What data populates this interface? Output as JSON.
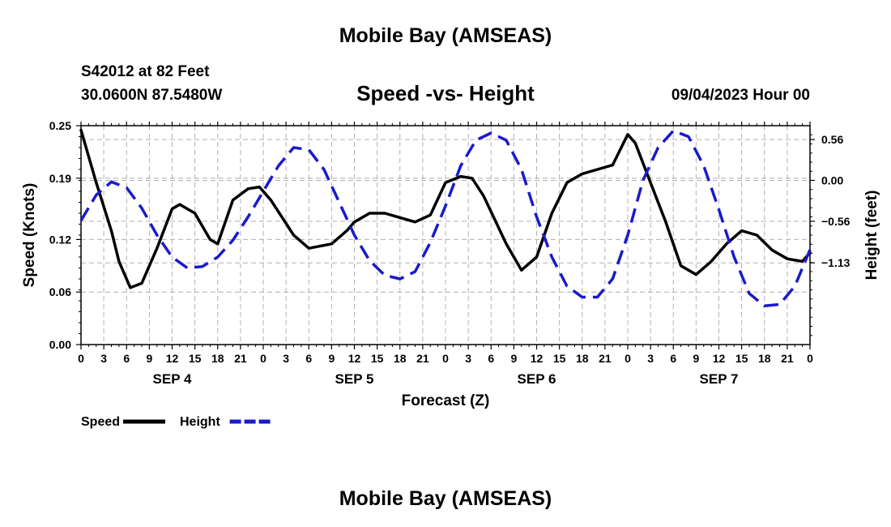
{
  "page": {
    "title": "Mobile Bay (AMSEAS)",
    "station": "S42012 at 82 Feet",
    "coordinates": "30.0600N  87.5480W",
    "chart_title": "Speed -vs- Height",
    "datetime": "09/04/2023 Hour 00",
    "bottom_title": "Mobile Bay (AMSEAS)"
  },
  "colors": {
    "speed": "#000000",
    "height": "#1a1acc",
    "grid": "#b0b0b0"
  },
  "chart_data": {
    "type": "line",
    "title": "Speed -vs- Height",
    "xlabel": "Forecast (Z)",
    "ylabel": "Speed (Knots)",
    "y2label": "Height (feet)",
    "xlim": [
      0,
      96
    ],
    "ylim": [
      0,
      0.25
    ],
    "y2lim": [
      -2.25,
      0.75
    ],
    "x_ticks": [
      0,
      3,
      6,
      9,
      12,
      15,
      18,
      21,
      24,
      27,
      30,
      33,
      36,
      39,
      42,
      45,
      48,
      51,
      54,
      57,
      60,
      63,
      66,
      69,
      72,
      75,
      78,
      81,
      84,
      87,
      90,
      93,
      96
    ],
    "x_tick_labels": [
      "0",
      "3",
      "6",
      "9",
      "12",
      "15",
      "18",
      "21",
      "0",
      "3",
      "6",
      "9",
      "12",
      "15",
      "18",
      "21",
      "0",
      "3",
      "6",
      "9",
      "12",
      "15",
      "18",
      "21",
      "0",
      "3",
      "6",
      "9",
      "12",
      "15",
      "18",
      "21",
      "0"
    ],
    "day_labels": [
      {
        "x": 12,
        "label": "SEP 4"
      },
      {
        "x": 36,
        "label": "SEP 5"
      },
      {
        "x": 60,
        "label": "SEP 6"
      },
      {
        "x": 84,
        "label": "SEP 7"
      }
    ],
    "y_ticks": [
      0,
      0.06,
      0.12,
      0.19,
      0.25
    ],
    "y_tick_labels": [
      "0.00",
      "0.06",
      "0.12",
      "0.19",
      "0.25"
    ],
    "y2_ticks": [
      0.56,
      0.0,
      -0.56,
      -1.13
    ],
    "y2_tick_labels": [
      "0.56",
      "0.00",
      "−0.56",
      "−1.13"
    ],
    "legend": [
      {
        "name": "Speed",
        "style": "solid",
        "color_key": "speed"
      },
      {
        "name": "Height",
        "style": "dashed",
        "color_key": "height"
      }
    ],
    "legend_position": "bottom-left",
    "series": [
      {
        "name": "Speed",
        "axis": "left",
        "style": "solid",
        "x": [
          0,
          2,
          4,
          5,
          6.5,
          8,
          10,
          12,
          13,
          15,
          17,
          18,
          20,
          22,
          23.5,
          25,
          28,
          30,
          33,
          35,
          36,
          38,
          40,
          42,
          44,
          46,
          48,
          50,
          51.5,
          53,
          56,
          58,
          60,
          62,
          64,
          66,
          68,
          70,
          72,
          73,
          75,
          77,
          79,
          81,
          83,
          85,
          87,
          89,
          91,
          93,
          95,
          96
        ],
        "values": [
          0.245,
          0.185,
          0.13,
          0.095,
          0.065,
          0.07,
          0.11,
          0.155,
          0.16,
          0.15,
          0.12,
          0.115,
          0.165,
          0.178,
          0.18,
          0.165,
          0.125,
          0.11,
          0.115,
          0.13,
          0.14,
          0.15,
          0.15,
          0.145,
          0.14,
          0.148,
          0.185,
          0.192,
          0.19,
          0.17,
          0.115,
          0.085,
          0.1,
          0.15,
          0.185,
          0.195,
          0.2,
          0.205,
          0.24,
          0.23,
          0.185,
          0.14,
          0.09,
          0.08,
          0.095,
          0.115,
          0.13,
          0.125,
          0.108,
          0.098,
          0.095,
          0.105
        ]
      },
      {
        "name": "Height",
        "axis": "right",
        "style": "dashed",
        "x": [
          0,
          2,
          4,
          6,
          8,
          10,
          12,
          14,
          16,
          18,
          20,
          22,
          24,
          26,
          28,
          30,
          32,
          34,
          36,
          38,
          40,
          42,
          44,
          46,
          48,
          50,
          52,
          54,
          56,
          58,
          60,
          62,
          64,
          66,
          68,
          70,
          72,
          74,
          76,
          78,
          80,
          82,
          84,
          86,
          88,
          90,
          92,
          94,
          96
        ],
        "values": [
          -0.55,
          -0.2,
          -0.02,
          -0.1,
          -0.38,
          -0.75,
          -1.05,
          -1.2,
          -1.18,
          -1.05,
          -0.82,
          -0.5,
          -0.15,
          0.2,
          0.45,
          0.42,
          0.15,
          -0.3,
          -0.75,
          -1.1,
          -1.3,
          -1.35,
          -1.25,
          -0.85,
          -0.35,
          0.2,
          0.55,
          0.65,
          0.55,
          0.15,
          -0.5,
          -1.05,
          -1.45,
          -1.6,
          -1.6,
          -1.35,
          -0.75,
          0.0,
          0.45,
          0.68,
          0.6,
          0.2,
          -0.4,
          -1.05,
          -1.55,
          -1.72,
          -1.7,
          -1.45,
          -0.95
        ]
      }
    ]
  }
}
